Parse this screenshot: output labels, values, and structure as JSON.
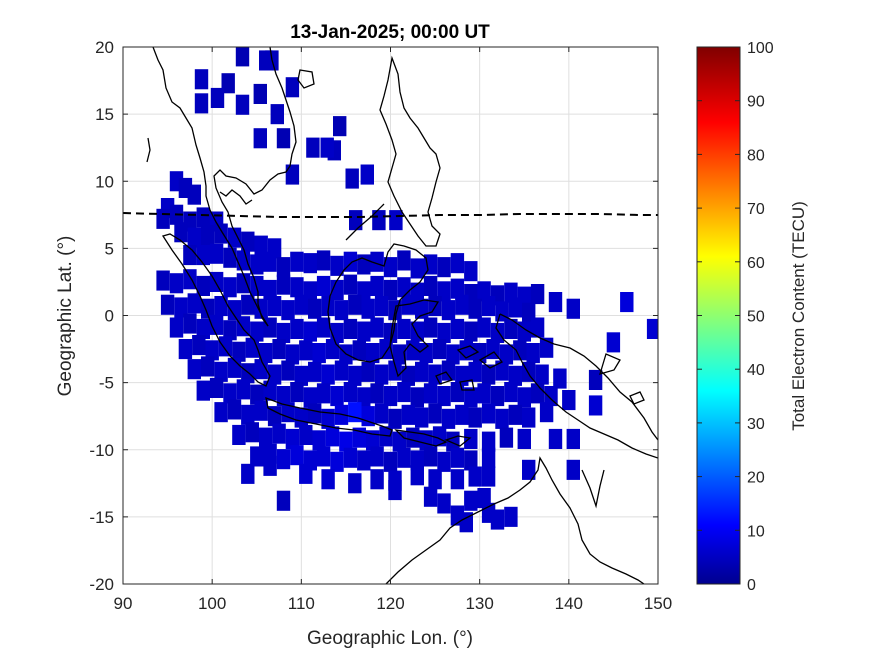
{
  "chart_data": {
    "type": "heatmap",
    "title": "13-Jan-2025; 00:00 UT",
    "xlabel": "Geographic Lon. (°)",
    "ylabel": "Geographic Lat. (°)",
    "xlim": [
      90,
      150
    ],
    "ylim": [
      -20,
      20
    ],
    "xticks": [
      "90",
      "100",
      "110",
      "120",
      "130",
      "140",
      "150"
    ],
    "yticks": [
      "-20",
      "-15",
      "-10",
      "-5",
      "0",
      "5",
      "10",
      "15",
      "20"
    ],
    "grid": true,
    "colorbar": {
      "label": "Total Electron Content (TECU)",
      "range": [
        0,
        100
      ],
      "ticks": [
        "0",
        "10",
        "20",
        "30",
        "40",
        "50",
        "60",
        "70",
        "80",
        "90",
        "100"
      ],
      "colormap": "jet"
    },
    "cell_size_deg": [
      1.5,
      1.5
    ],
    "cells": [
      [
        106,
        19,
        6
      ],
      [
        106.7,
        19,
        6
      ],
      [
        103.4,
        19.3,
        5
      ],
      [
        109,
        17,
        6
      ],
      [
        98.8,
        17.6,
        6
      ],
      [
        101.8,
        17.3,
        5
      ],
      [
        105.4,
        16.5,
        5
      ],
      [
        98.8,
        15.8,
        6
      ],
      [
        100.6,
        16.2,
        6
      ],
      [
        103.4,
        15.7,
        6
      ],
      [
        107.3,
        15,
        6
      ],
      [
        105.4,
        13.2,
        6
      ],
      [
        113.7,
        12.3,
        6
      ],
      [
        112.9,
        12.5,
        7
      ],
      [
        108,
        13.2,
        5
      ],
      [
        114.3,
        14.1,
        5
      ],
      [
        111.3,
        12.5,
        6
      ],
      [
        109,
        10.5,
        6
      ],
      [
        115.7,
        10.2,
        6
      ],
      [
        117.4,
        10.5,
        7
      ],
      [
        116.1,
        7.1,
        6
      ],
      [
        118.7,
        7.1,
        6
      ],
      [
        120.6,
        7.1,
        7
      ],
      [
        96,
        10,
        7
      ],
      [
        97,
        9.5,
        6
      ],
      [
        98,
        9,
        6
      ],
      [
        95,
        8,
        7
      ],
      [
        94.5,
        7.2,
        6
      ],
      [
        96,
        7.5,
        6
      ],
      [
        97.5,
        7,
        6
      ],
      [
        99,
        7.3,
        6
      ],
      [
        100.5,
        7,
        7
      ],
      [
        96.5,
        6.2,
        6
      ],
      [
        98,
        5.8,
        7
      ],
      [
        99.5,
        6,
        6
      ],
      [
        101,
        6.1,
        6
      ],
      [
        102.5,
        5.8,
        7
      ],
      [
        104,
        5.5,
        6
      ],
      [
        105.5,
        5.2,
        7
      ],
      [
        107,
        5,
        7
      ],
      [
        97.5,
        4.5,
        6
      ],
      [
        99,
        4.5,
        7
      ],
      [
        100.5,
        4.6,
        7
      ],
      [
        102,
        4.3,
        6
      ],
      [
        103.5,
        4.1,
        7
      ],
      [
        105,
        3.8,
        7
      ],
      [
        106.5,
        4,
        7
      ],
      [
        108,
        3.6,
        6
      ],
      [
        109.5,
        4,
        7
      ],
      [
        111,
        3.9,
        7
      ],
      [
        112.5,
        4.1,
        6
      ],
      [
        114,
        3.7,
        7
      ],
      [
        115.5,
        4,
        8
      ],
      [
        117,
        3.8,
        6
      ],
      [
        118.5,
        4,
        7
      ],
      [
        120,
        3.6,
        7
      ],
      [
        121.5,
        4.1,
        6
      ],
      [
        123,
        3.5,
        7
      ],
      [
        124.5,
        3.8,
        7
      ],
      [
        126,
        3.6,
        6
      ],
      [
        127.5,
        3.9,
        7
      ],
      [
        129,
        3.3,
        7
      ],
      [
        94.5,
        2.6,
        6
      ],
      [
        96,
        2.4,
        7
      ],
      [
        97.5,
        2.7,
        7
      ],
      [
        99,
        2.2,
        6
      ],
      [
        100.5,
        2.5,
        7
      ],
      [
        102,
        2.1,
        7
      ],
      [
        103.5,
        2.4,
        6
      ],
      [
        105,
        2.2,
        7
      ],
      [
        106.5,
        1.9,
        7
      ],
      [
        108,
        2.3,
        6
      ],
      [
        109.5,
        2.1,
        7
      ],
      [
        111,
        1.8,
        7
      ],
      [
        112.5,
        2.2,
        8
      ],
      [
        114,
        1.9,
        7
      ],
      [
        115.5,
        2.3,
        6
      ],
      [
        117,
        1.8,
        7
      ],
      [
        118.5,
        2.2,
        7
      ],
      [
        120,
        1.9,
        6
      ],
      [
        121.5,
        2.1,
        7
      ],
      [
        123,
        1.7,
        7
      ],
      [
        124.5,
        2.2,
        6
      ],
      [
        126,
        1.8,
        7
      ],
      [
        127.5,
        2,
        7
      ],
      [
        129,
        1.6,
        6
      ],
      [
        130.5,
        1.8,
        7
      ],
      [
        132,
        1.5,
        6
      ],
      [
        133.5,
        1.7,
        7
      ],
      [
        135,
        1.4,
        7
      ],
      [
        136.5,
        1.6,
        6
      ],
      [
        138.5,
        1,
        7
      ],
      [
        140.5,
        0.5,
        7
      ],
      [
        146.5,
        1,
        9
      ],
      [
        95,
        0.8,
        6
      ],
      [
        96.5,
        0.6,
        7
      ],
      [
        98,
        0.9,
        7
      ],
      [
        99.5,
        0.5,
        6
      ],
      [
        101,
        0.7,
        7
      ],
      [
        102.5,
        0.4,
        7
      ],
      [
        104,
        0.8,
        6
      ],
      [
        105.5,
        0.5,
        7
      ],
      [
        107,
        0.7,
        7
      ],
      [
        108.5,
        0.4,
        7
      ],
      [
        110,
        0.8,
        7
      ],
      [
        111.5,
        0.5,
        6
      ],
      [
        113,
        0.7,
        7
      ],
      [
        114.5,
        0.4,
        7
      ],
      [
        116,
        0.8,
        6
      ],
      [
        117.5,
        0.5,
        7
      ],
      [
        119,
        0.7,
        7
      ],
      [
        120.5,
        0.4,
        6
      ],
      [
        122,
        0.8,
        7
      ],
      [
        123.5,
        0.5,
        7
      ],
      [
        125,
        0.7,
        6
      ],
      [
        126.5,
        0.4,
        7
      ],
      [
        128,
        0.8,
        7
      ],
      [
        129.5,
        0.5,
        6
      ],
      [
        131,
        0.7,
        7
      ],
      [
        132.5,
        0.3,
        7
      ],
      [
        134,
        0.6,
        7
      ],
      [
        135.5,
        0.2,
        6
      ],
      [
        96,
        -0.9,
        7
      ],
      [
        97.5,
        -0.6,
        6
      ],
      [
        99,
        -1,
        7
      ],
      [
        100.5,
        -0.7,
        7
      ],
      [
        102,
        -1.1,
        6
      ],
      [
        103.5,
        -0.8,
        7
      ],
      [
        105,
        -1.2,
        7
      ],
      [
        106.5,
        -0.9,
        6
      ],
      [
        108,
        -1.3,
        7
      ],
      [
        109.5,
        -1,
        7
      ],
      [
        111,
        -1.2,
        8
      ],
      [
        112.5,
        -0.9,
        7
      ],
      [
        114,
        -1.3,
        7
      ],
      [
        115.5,
        -1,
        6
      ],
      [
        117,
        -1.2,
        7
      ],
      [
        118.5,
        -0.9,
        7
      ],
      [
        120,
        -1.3,
        6
      ],
      [
        121.5,
        -1,
        7
      ],
      [
        123,
        -1.2,
        7
      ],
      [
        124.5,
        -0.9,
        6
      ],
      [
        126,
        -1.3,
        7
      ],
      [
        127.5,
        -1,
        7
      ],
      [
        129,
        -1.2,
        6
      ],
      [
        130.5,
        -0.9,
        7
      ],
      [
        132,
        -1.3,
        7
      ],
      [
        133.5,
        -1,
        6
      ],
      [
        135,
        -1.2,
        7
      ],
      [
        136.5,
        -0.9,
        7
      ],
      [
        149.5,
        -1,
        8
      ],
      [
        97,
        -2.5,
        7
      ],
      [
        98.5,
        -2.2,
        6
      ],
      [
        100,
        -2.6,
        7
      ],
      [
        101.5,
        -2.3,
        7
      ],
      [
        103,
        -2.7,
        6
      ],
      [
        104.5,
        -2.4,
        7
      ],
      [
        106,
        -2.8,
        7
      ],
      [
        107.5,
        -2.5,
        6
      ],
      [
        109,
        -2.9,
        7
      ],
      [
        110.5,
        -2.6,
        7
      ],
      [
        112,
        -2.8,
        8
      ],
      [
        113.5,
        -2.5,
        7
      ],
      [
        115,
        -2.9,
        7
      ],
      [
        116.5,
        -2.6,
        6
      ],
      [
        118,
        -2.8,
        7
      ],
      [
        119.5,
        -2.5,
        7
      ],
      [
        121,
        -2.9,
        6
      ],
      [
        122.5,
        -2.6,
        7
      ],
      [
        124,
        -2.8,
        7
      ],
      [
        125.5,
        -2.5,
        6
      ],
      [
        127,
        -2.9,
        7
      ],
      [
        128.5,
        -2.6,
        7
      ],
      [
        130,
        -2.8,
        6
      ],
      [
        131.5,
        -2.5,
        7
      ],
      [
        133,
        -2.9,
        7
      ],
      [
        134.5,
        -2.6,
        6
      ],
      [
        136,
        -2.8,
        7
      ],
      [
        137.5,
        -2.4,
        7
      ],
      [
        145,
        -2,
        8
      ],
      [
        98,
        -4,
        7
      ],
      [
        99.5,
        -3.8,
        6
      ],
      [
        101,
        -4.2,
        7
      ],
      [
        102.5,
        -3.9,
        7
      ],
      [
        104,
        -4.3,
        6
      ],
      [
        105.5,
        -4,
        7
      ],
      [
        107,
        -4.4,
        7
      ],
      [
        108.5,
        -4.1,
        6
      ],
      [
        110,
        -4.5,
        7
      ],
      [
        111.5,
        -4.2,
        7
      ],
      [
        113,
        -4.4,
        8
      ],
      [
        114.5,
        -4.1,
        7
      ],
      [
        116,
        -4.5,
        7
      ],
      [
        117.5,
        -4.2,
        6
      ],
      [
        119,
        -4.4,
        7
      ],
      [
        120.5,
        -4.1,
        7
      ],
      [
        122,
        -4.5,
        6
      ],
      [
        123.5,
        -4.2,
        7
      ],
      [
        125,
        -4.4,
        7
      ],
      [
        126.5,
        -4.1,
        6
      ],
      [
        128,
        -4.5,
        7
      ],
      [
        129.5,
        -4.2,
        7
      ],
      [
        131,
        -4.4,
        6
      ],
      [
        132.5,
        -4.1,
        7
      ],
      [
        134,
        -4.5,
        7
      ],
      [
        135.5,
        -4.2,
        6
      ],
      [
        137,
        -4.4,
        7
      ],
      [
        139,
        -4.7,
        7
      ],
      [
        143,
        -4.8,
        6
      ],
      [
        99,
        -5.6,
        7
      ],
      [
        100.5,
        -5.4,
        6
      ],
      [
        102,
        -5.8,
        7
      ],
      [
        103.5,
        -5.5,
        7
      ],
      [
        105,
        -5.9,
        6
      ],
      [
        106.5,
        -5.6,
        7
      ],
      [
        108,
        -6,
        7
      ],
      [
        109.5,
        -5.7,
        6
      ],
      [
        111,
        -6.1,
        7
      ],
      [
        112.5,
        -5.8,
        7
      ],
      [
        114,
        -6,
        8
      ],
      [
        115.5,
        -5.7,
        7
      ],
      [
        117,
        -6.1,
        7
      ],
      [
        118.5,
        -5.8,
        6
      ],
      [
        120,
        -6,
        7
      ],
      [
        121.5,
        -5.7,
        7
      ],
      [
        123,
        -6.1,
        6
      ],
      [
        124.5,
        -5.8,
        7
      ],
      [
        126,
        -6,
        7
      ],
      [
        127.5,
        -5.7,
        6
      ],
      [
        129,
        -6.1,
        7
      ],
      [
        130.5,
        -5.8,
        7
      ],
      [
        132,
        -6,
        6
      ],
      [
        133.5,
        -5.7,
        7
      ],
      [
        135,
        -6.1,
        7
      ],
      [
        136.5,
        -5.8,
        6
      ],
      [
        138,
        -6,
        7
      ],
      [
        140,
        -6.3,
        7
      ],
      [
        101,
        -7.2,
        7
      ],
      [
        102.5,
        -7,
        6
      ],
      [
        104,
        -7.4,
        7
      ],
      [
        105.5,
        -7.1,
        7
      ],
      [
        107,
        -7.5,
        6
      ],
      [
        108.5,
        -7.2,
        7
      ],
      [
        110,
        -7.6,
        7
      ],
      [
        111.5,
        -7.3,
        6
      ],
      [
        113,
        -7.7,
        8
      ],
      [
        114.5,
        -7.4,
        9
      ],
      [
        116,
        -7.2,
        14
      ],
      [
        117.5,
        -7.5,
        9
      ],
      [
        119,
        -7.3,
        7
      ],
      [
        120.5,
        -7.7,
        6
      ],
      [
        122,
        -7.4,
        7
      ],
      [
        123.5,
        -7.6,
        7
      ],
      [
        125,
        -7.3,
        6
      ],
      [
        126.5,
        -7.7,
        7
      ],
      [
        128,
        -7.4,
        7
      ],
      [
        129.5,
        -7.6,
        6
      ],
      [
        131,
        -7.3,
        7
      ],
      [
        132.5,
        -7.7,
        7
      ],
      [
        134,
        -7.4,
        6
      ],
      [
        135.5,
        -7.6,
        7
      ],
      [
        137.5,
        -7.2,
        7
      ],
      [
        143,
        -6.7,
        8
      ],
      [
        103,
        -8.9,
        7
      ],
      [
        104.5,
        -8.7,
        6
      ],
      [
        106,
        -9.1,
        7
      ],
      [
        107.5,
        -8.8,
        7
      ],
      [
        109,
        -9.2,
        8
      ],
      [
        110.5,
        -8.9,
        7
      ],
      [
        112,
        -9.3,
        8
      ],
      [
        113.5,
        -9,
        9
      ],
      [
        115,
        -9.4,
        10
      ],
      [
        116.5,
        -9.1,
        9
      ],
      [
        118,
        -9.3,
        8
      ],
      [
        119.5,
        -9,
        7
      ],
      [
        121,
        -9.4,
        7
      ],
      [
        122.5,
        -9.1,
        6
      ],
      [
        124,
        -9.3,
        7
      ],
      [
        125.5,
        -9,
        7
      ],
      [
        127,
        -9.4,
        6
      ],
      [
        129,
        -9.2,
        7
      ],
      [
        131,
        -9.4,
        7
      ],
      [
        133,
        -9.1,
        6
      ],
      [
        135,
        -9.2,
        7
      ],
      [
        138.5,
        -9.2,
        7
      ],
      [
        140.5,
        -9.2,
        7
      ],
      [
        105,
        -10.5,
        7
      ],
      [
        106.5,
        -10.3,
        7
      ],
      [
        108,
        -10.7,
        8
      ],
      [
        109.5,
        -10.4,
        9
      ],
      [
        111,
        -10.8,
        8
      ],
      [
        112.5,
        -10.5,
        8
      ],
      [
        114,
        -10.9,
        9
      ],
      [
        115.5,
        -10.6,
        8
      ],
      [
        117,
        -10.8,
        7
      ],
      [
        118.5,
        -10.5,
        7
      ],
      [
        120,
        -10.9,
        6
      ],
      [
        121.5,
        -10.6,
        7
      ],
      [
        123,
        -10.8,
        7
      ],
      [
        124.5,
        -10.5,
        6
      ],
      [
        126,
        -10.9,
        7
      ],
      [
        127.5,
        -10.6,
        7
      ],
      [
        129,
        -10.8,
        6
      ],
      [
        131,
        -10.6,
        7
      ],
      [
        135.5,
        -11.5,
        7
      ],
      [
        104,
        -11.8,
        7
      ],
      [
        106.5,
        -11.2,
        7
      ],
      [
        110.5,
        -11.8,
        8
      ],
      [
        113,
        -12.2,
        8
      ],
      [
        116,
        -12.5,
        7
      ],
      [
        118.5,
        -12.2,
        7
      ],
      [
        120.5,
        -12.3,
        7
      ],
      [
        123,
        -11.9,
        7
      ],
      [
        125,
        -12.2,
        7
      ],
      [
        127.5,
        -12.2,
        7
      ],
      [
        129.5,
        -12,
        7
      ],
      [
        131,
        -12,
        7
      ],
      [
        140.5,
        -11.5,
        7
      ],
      [
        120.5,
        -13,
        7
      ],
      [
        124.5,
        -13.5,
        7
      ],
      [
        129,
        -13.8,
        7
      ],
      [
        130.5,
        -13.6,
        7
      ],
      [
        108,
        -13.8,
        6
      ],
      [
        126,
        -14,
        7
      ],
      [
        127.5,
        -14.9,
        7
      ],
      [
        131,
        -14.7,
        7
      ],
      [
        133.5,
        -15,
        7
      ],
      [
        132,
        -15.2,
        7
      ],
      [
        128.5,
        -15.4,
        7
      ]
    ]
  }
}
